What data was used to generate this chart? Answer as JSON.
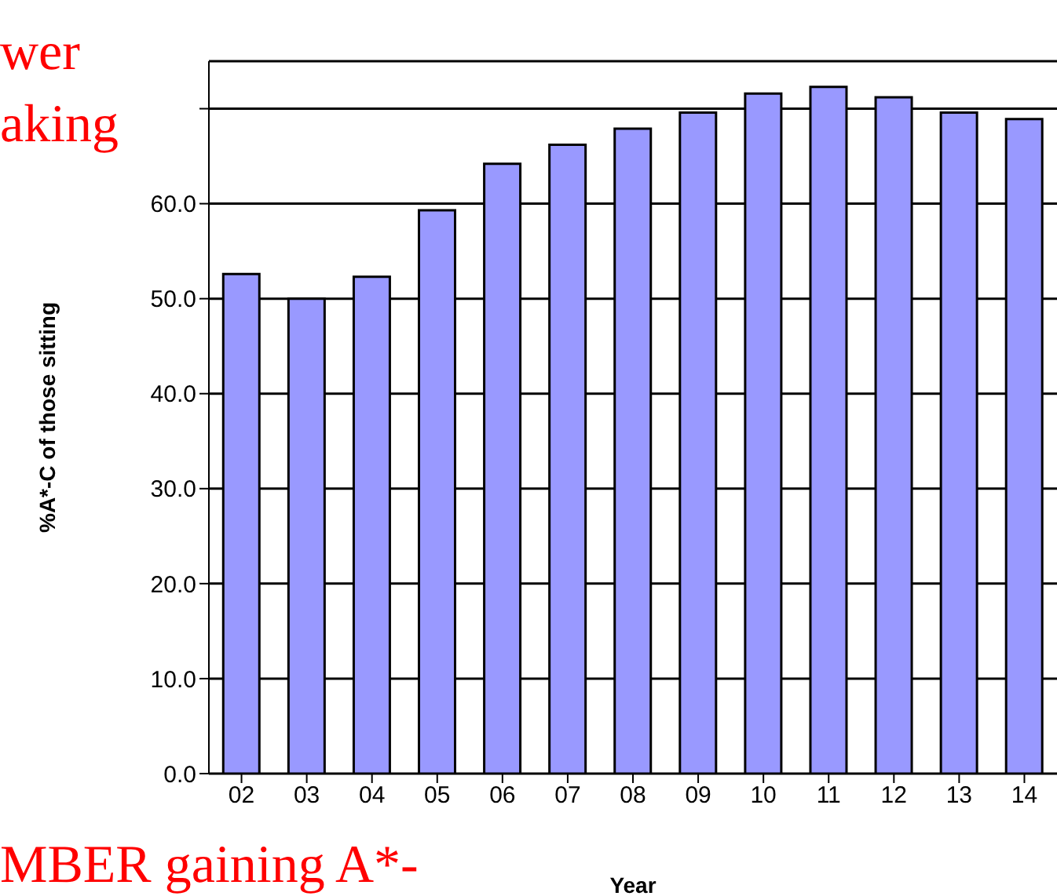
{
  "chart_data": {
    "type": "bar",
    "ylabel": "%A*-C of those sitting",
    "xlabel": "Year",
    "categories": [
      "02",
      "03",
      "04",
      "05",
      "06",
      "07",
      "08",
      "09",
      "10",
      "11",
      "12",
      "13",
      "14"
    ],
    "values": [
      52.6,
      50.0,
      52.3,
      59.3,
      64.2,
      66.2,
      67.9,
      69.6,
      71.6,
      72.3,
      71.2,
      69.6,
      68.9
    ],
    "color": "#9999ff",
    "ylim": [
      0,
      75
    ],
    "yticks": [
      {
        "value": 0,
        "label": "0.0"
      },
      {
        "value": 10,
        "label": "10.0"
      },
      {
        "value": 20,
        "label": "20.0"
      },
      {
        "value": 30,
        "label": "30.0"
      },
      {
        "value": 40,
        "label": "40.0"
      },
      {
        "value": 50,
        "label": "50.0"
      },
      {
        "value": 60,
        "label": "60.0"
      },
      {
        "value": 70,
        "label": null
      }
    ],
    "grid": "y",
    "legend": false,
    "annotations": [
      "wer",
      "aking",
      "MBER gaining A*-"
    ]
  }
}
